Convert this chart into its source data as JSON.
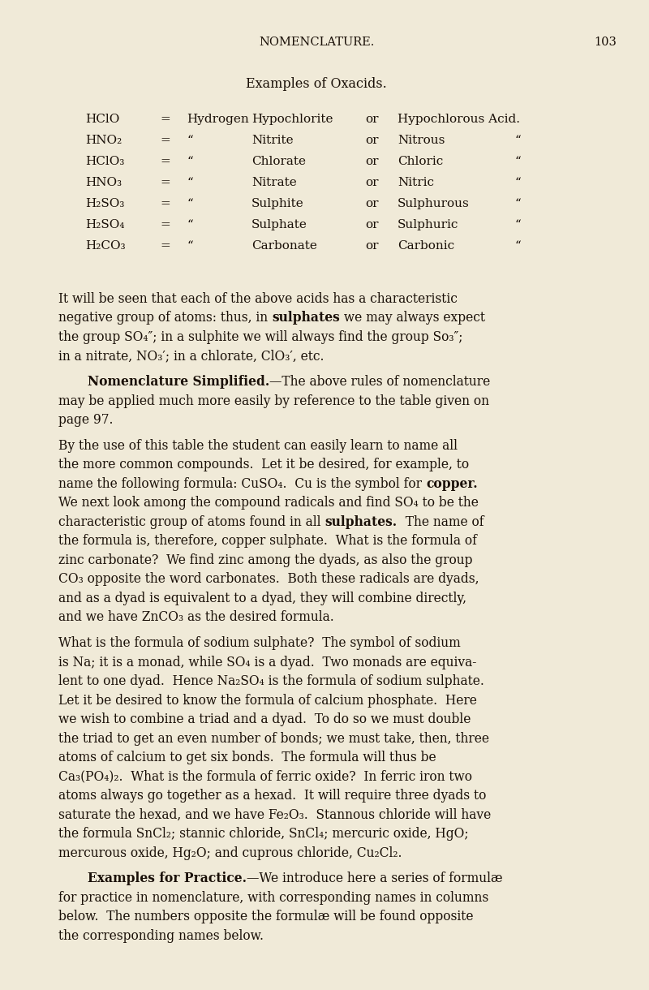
{
  "bg_color": "#f0ead8",
  "text_color": "#1a1008",
  "header": "NOMENCLATURE.",
  "page_num": "103",
  "section_title": "Examples of Oxacids.",
  "table": [
    [
      "HClO",
      "=",
      "Hydrogen",
      "Hypochlorite",
      "or",
      "Hypochlorous Acid.",
      ""
    ],
    [
      "HNO₂",
      "=",
      "“",
      "Nitrite",
      "or",
      "Nitrous",
      "“"
    ],
    [
      "HClO₃",
      "=",
      "“",
      "Chlorate",
      "or",
      "Chloric",
      "“"
    ],
    [
      "HNO₃",
      "=",
      "“",
      "Nitrate",
      "or",
      "Nitric",
      "“"
    ],
    [
      "H₂SO₃",
      "=",
      "“",
      "Sulphite",
      "or",
      "Sulphurous",
      "“"
    ],
    [
      "H₂SO₄",
      "=",
      "“",
      "Sulphate",
      "or",
      "Sulphuric",
      "“"
    ],
    [
      "H₂CO₃",
      "=",
      "“",
      "Carbonate",
      "or",
      "Carbonic",
      "“"
    ]
  ],
  "body_lines": [
    {
      "t": "It will be seen that each of the above acids has a characteristic",
      "bold_ranges": [],
      "indent": false
    },
    {
      "t": "negative group of atoms: thus, in |sulphates| we may always expect",
      "bold_ranges": [
        [
          32,
          41
        ]
      ],
      "indent": false
    },
    {
      "t": "the group SO₄″; in a sulphite we will always find the group So₃″;",
      "bold_ranges": [],
      "indent": false
    },
    {
      "t": "in a nitrate, NO₃′; in a chlorate, ClO₃′, etc.",
      "bold_ranges": [],
      "indent": false
    },
    {
      "t": "",
      "bold_ranges": [],
      "indent": false
    },
    {
      "t": "|Nomenclature Simplified.|—The above rules of nomenclature",
      "bold_ranges": [
        [
          0,
          24
        ]
      ],
      "indent": true
    },
    {
      "t": "may be applied much more easily by reference to the table given on",
      "bold_ranges": [],
      "indent": false
    },
    {
      "t": "page 97.",
      "bold_ranges": [],
      "indent": false
    },
    {
      "t": "",
      "bold_ranges": [],
      "indent": false
    },
    {
      "t": "By the use of this table the student can easily learn to name all",
      "bold_ranges": [],
      "indent": false
    },
    {
      "t": "the more common compounds.  Let it be desired, for example, to",
      "bold_ranges": [],
      "indent": false
    },
    {
      "t": "name the following formula: CuSO₄.  Cu is the symbol for |copper.|",
      "bold_ranges": [
        [
          55,
          63
        ]
      ],
      "indent": false
    },
    {
      "t": "We next look among the compound radicals and find SO₄ to be the",
      "bold_ranges": [],
      "indent": false
    },
    {
      "t": "characteristic group of atoms found in all |sulphates.|  The name of",
      "bold_ranges": [
        [
          42,
          52
        ]
      ],
      "indent": false
    },
    {
      "t": "the formula is, therefore, copper sulphate.  What is the formula of",
      "bold_ranges": [],
      "indent": false
    },
    {
      "t": "zinc carbonate?  We find zinc among the dyads, as also the group",
      "bold_ranges": [],
      "indent": false
    },
    {
      "t": "CO₃ opposite the word carbonates.  Both these radicals are dyads,",
      "bold_ranges": [],
      "indent": false
    },
    {
      "t": "and as a dyad is equivalent to a dyad, they will combine directly,",
      "bold_ranges": [],
      "indent": false
    },
    {
      "t": "and we have ZnCO₃ as the desired formula.",
      "bold_ranges": [],
      "indent": false
    },
    {
      "t": "",
      "bold_ranges": [],
      "indent": false
    },
    {
      "t": "What is the formula of sodium sulphate?  The symbol of sodium",
      "bold_ranges": [],
      "indent": false
    },
    {
      "t": "is Na; it is a monad, while SO₄ is a dyad.  Two monads are equiva-",
      "bold_ranges": [],
      "indent": false
    },
    {
      "t": "lent to one dyad.  Hence Na₂SO₄ is the formula of sodium sulphate.",
      "bold_ranges": [],
      "indent": false
    },
    {
      "t": "Let it be desired to know the formula of calcium phosphate.  Here",
      "bold_ranges": [],
      "indent": false
    },
    {
      "t": "we wish to combine a triad and a dyad.  To do so we must double",
      "bold_ranges": [],
      "indent": false
    },
    {
      "t": "the triad to get an even number of bonds; we must take, then, three",
      "bold_ranges": [],
      "indent": false
    },
    {
      "t": "atoms of calcium to get six bonds.  The formula will thus be",
      "bold_ranges": [],
      "indent": false
    },
    {
      "t": "Ca₃(PO₄)₂.  What is the formula of ferric oxide?  In ferric iron two",
      "bold_ranges": [],
      "indent": false
    },
    {
      "t": "atoms always go together as a hexad.  It will require three dyads to",
      "bold_ranges": [],
      "indent": false
    },
    {
      "t": "saturate the hexad, and we have Fe₂O₃.  Stannous chloride will have",
      "bold_ranges": [],
      "indent": false
    },
    {
      "t": "the formula SnCl₂; stannic chloride, SnCl₄; mercuric oxide, HgO;",
      "bold_ranges": [],
      "indent": false
    },
    {
      "t": "mercurous oxide, Hg₂O; and cuprous chloride, Cu₂Cl₂.",
      "bold_ranges": [],
      "indent": false
    },
    {
      "t": "",
      "bold_ranges": [],
      "indent": false
    },
    {
      "t": "|Examples for Practice.|—We introduce here a series of formulæ",
      "bold_ranges": [
        [
          0,
          22
        ]
      ],
      "indent": true
    },
    {
      "t": "for practice in nomenclature, with corresponding names in columns",
      "bold_ranges": [],
      "indent": false
    },
    {
      "t": "below.  The numbers opposite the formulæ will be found opposite",
      "bold_ranges": [],
      "indent": false
    },
    {
      "t": "the corresponding names below.",
      "bold_ranges": [],
      "indent": false
    }
  ]
}
